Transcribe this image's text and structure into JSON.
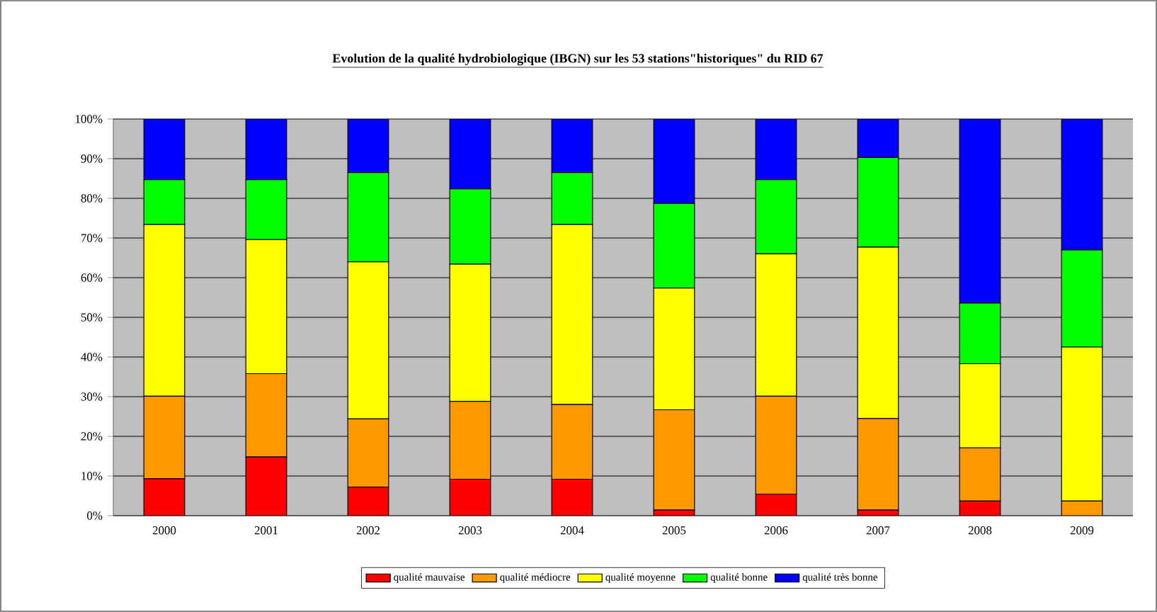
{
  "chart_data": {
    "type": "bar",
    "title": "Evolution de la qualité hydrobiologique (IBGN) sur les 53 stations\"historiques\" du RID 67",
    "categories": [
      "2000",
      "2001",
      "2002",
      "2003",
      "2004",
      "2005",
      "2006",
      "2007",
      "2008",
      "2009"
    ],
    "stacked": true,
    "series": [
      {
        "name": "qualité mauvaise",
        "color": "#ff0000",
        "values": [
          9.3,
          14.8,
          7.2,
          9.2,
          9.2,
          1.4,
          5.4,
          1.4,
          3.7,
          0
        ]
      },
      {
        "name": "qualité médiocre",
        "color": "#ff9900",
        "values": [
          20.8,
          21.0,
          17.2,
          19.6,
          18.8,
          25.3,
          24.7,
          23.1,
          13.4,
          3.7
        ]
      },
      {
        "name": "qualité moyenne",
        "color": "#ffff00",
        "values": [
          43.3,
          33.8,
          39.6,
          34.6,
          45.4,
          30.7,
          35.9,
          43.2,
          21.2,
          38.8
        ]
      },
      {
        "name": "qualité bonne",
        "color": "#00ff00",
        "values": [
          11.3,
          15.1,
          22.5,
          19.0,
          13.1,
          21.3,
          18.7,
          22.6,
          15.3,
          24.5
        ]
      },
      {
        "name": "qualité très bonne",
        "color": "#0000ff",
        "values": [
          15.3,
          15.3,
          13.5,
          17.6,
          13.5,
          21.3,
          15.3,
          9.7,
          46.4,
          33.0
        ]
      }
    ],
    "ylim": [
      0,
      100
    ],
    "yticks": [
      {
        "value": 0,
        "label": "0%"
      },
      {
        "value": 10,
        "label": "10%"
      },
      {
        "value": 20,
        "label": "20%"
      },
      {
        "value": 30,
        "label": "30%"
      },
      {
        "value": 40,
        "label": "40%"
      },
      {
        "value": 50,
        "label": "50%"
      },
      {
        "value": 60,
        "label": "60%"
      },
      {
        "value": 70,
        "label": "70%"
      },
      {
        "value": 80,
        "label": "80%"
      },
      {
        "value": 90,
        "label": "90%"
      },
      {
        "value": 100,
        "label": "100%"
      }
    ],
    "grid": "y",
    "legend": "bottom"
  }
}
